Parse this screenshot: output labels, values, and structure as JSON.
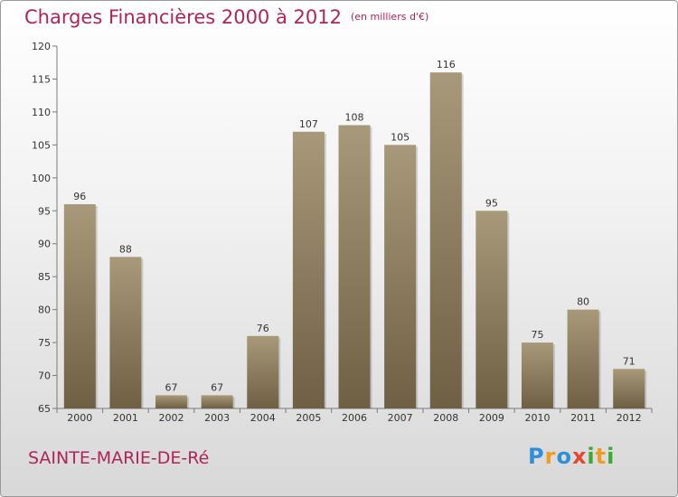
{
  "title": "Charges Financières 2000 à 2012",
  "subtitle": "(en milliers d'€)",
  "place": "SAINTE-MARIE-DE-Ré",
  "logo": {
    "text": "Proxiti",
    "letters": [
      {
        "ch": "P",
        "color": "#2f8fd8"
      },
      {
        "ch": "r",
        "color": "#f29c1f"
      },
      {
        "ch": "o",
        "color": "#2f8fd8"
      },
      {
        "ch": "x",
        "color": "#e7462f"
      },
      {
        "ch": "i",
        "color": "#3aaa35"
      },
      {
        "ch": "t",
        "color": "#f29c1f"
      },
      {
        "ch": "i",
        "color": "#3aaa35"
      }
    ]
  },
  "colors": {
    "accent": "#b0245a",
    "bar_top": "#a8997a",
    "bar_bottom": "#6f5f44",
    "axis": "#7a7a7a"
  },
  "chart_data": {
    "type": "bar",
    "categories": [
      "2000",
      "2001",
      "2002",
      "2003",
      "2004",
      "2005",
      "2006",
      "2007",
      "2008",
      "2009",
      "2010",
      "2011",
      "2012"
    ],
    "values": [
      96,
      88,
      67,
      67,
      76,
      107,
      108,
      105,
      116,
      95,
      75,
      80,
      71
    ],
    "ylim": [
      65,
      120
    ],
    "yticks": [
      65,
      70,
      75,
      80,
      85,
      90,
      95,
      100,
      105,
      110,
      115,
      120
    ],
    "grid": false,
    "data_labels": true
  }
}
